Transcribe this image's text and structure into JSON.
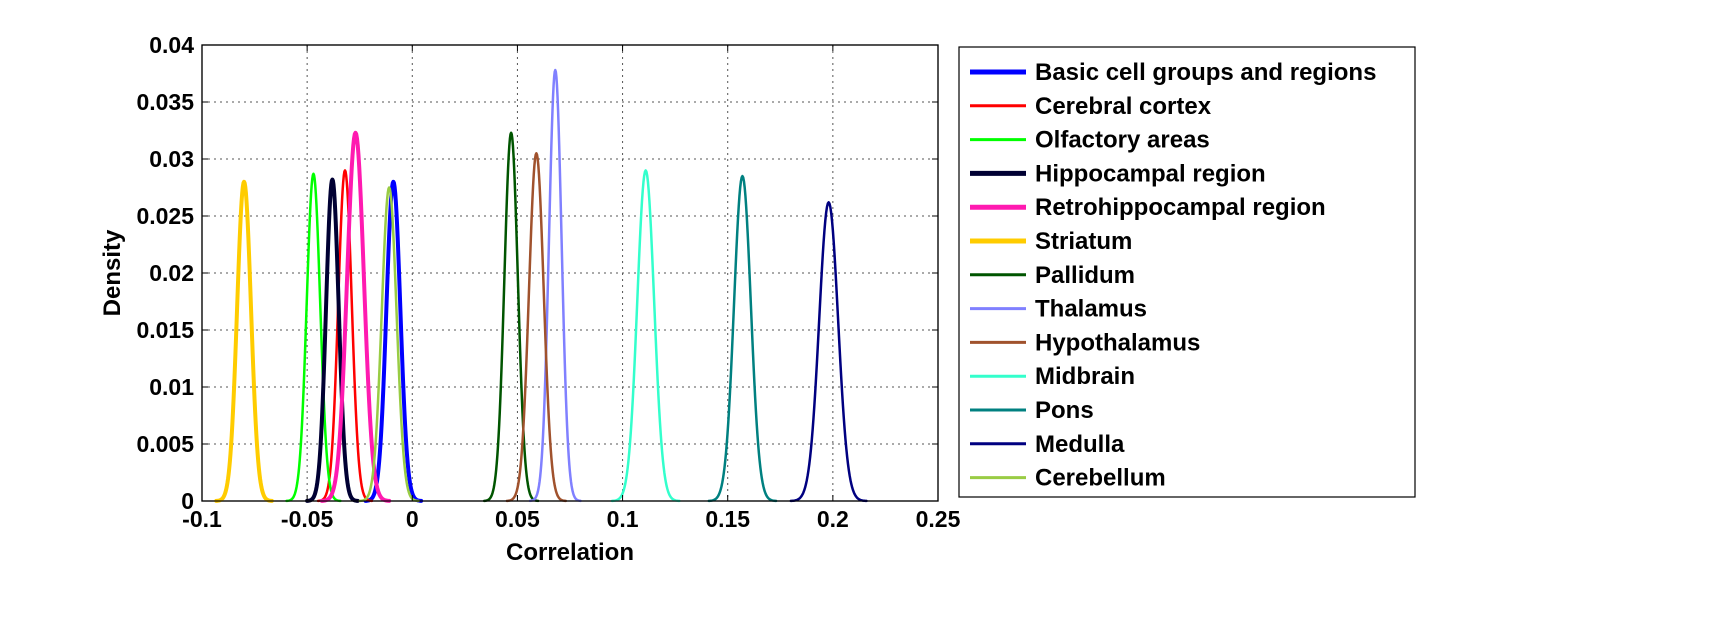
{
  "chart_data": {
    "type": "line",
    "title": "",
    "xlabel": "Correlation",
    "ylabel": "Density",
    "xlim": [
      -0.1,
      0.25
    ],
    "ylim": [
      0,
      0.04
    ],
    "xticks": [
      -0.1,
      -0.05,
      0,
      0.05,
      0.1,
      0.15,
      0.2,
      0.25
    ],
    "xtick_labels": [
      "-0.1",
      "-0.05",
      "0",
      "0.05",
      "0.1",
      "0.15",
      "0.2",
      "0.25"
    ],
    "yticks": [
      0,
      0.005,
      0.01,
      0.015,
      0.02,
      0.025,
      0.03,
      0.035,
      0.04
    ],
    "ytick_labels": [
      "0",
      "0.005",
      "0.01",
      "0.015",
      "0.02",
      "0.025",
      "0.03",
      "0.035",
      "0.04"
    ],
    "grid": true,
    "legend_position": "outside-right",
    "series": [
      {
        "name": "Basic cell groups and regions",
        "color": "#0000ff",
        "thick": true,
        "peak_x": -0.009,
        "peak_y": 0.028,
        "sigma": 0.0033
      },
      {
        "name": "Cerebral cortex",
        "color": "#ff0000",
        "thick": false,
        "peak_x": -0.032,
        "peak_y": 0.029,
        "sigma": 0.0032
      },
      {
        "name": "Olfactory areas",
        "color": "#00ff00",
        "thick": false,
        "peak_x": -0.047,
        "peak_y": 0.0287,
        "sigma": 0.0032
      },
      {
        "name": "Hippocampal region",
        "color": "#000033",
        "thick": true,
        "peak_x": -0.038,
        "peak_y": 0.0282,
        "sigma": 0.003
      },
      {
        "name": "Retrohippocampal region",
        "color": "#ff1ab0",
        "thick": true,
        "peak_x": -0.027,
        "peak_y": 0.0323,
        "sigma": 0.004
      },
      {
        "name": "Striatum",
        "color": "#ffcc00",
        "thick": true,
        "peak_x": -0.08,
        "peak_y": 0.028,
        "sigma": 0.0033
      },
      {
        "name": "Pallidum",
        "color": "#005500",
        "thick": false,
        "peak_x": 0.047,
        "peak_y": 0.0323,
        "sigma": 0.0032
      },
      {
        "name": "Thalamus",
        "color": "#8080ff",
        "thick": false,
        "peak_x": 0.068,
        "peak_y": 0.0378,
        "sigma": 0.003
      },
      {
        "name": "Hypothalamus",
        "color": "#a0522d",
        "thick": false,
        "peak_x": 0.059,
        "peak_y": 0.0305,
        "sigma": 0.0035
      },
      {
        "name": "Midbrain",
        "color": "#33ffcc",
        "thick": false,
        "peak_x": 0.111,
        "peak_y": 0.029,
        "sigma": 0.004
      },
      {
        "name": "Pons",
        "color": "#008080",
        "thick": false,
        "peak_x": 0.157,
        "peak_y": 0.0285,
        "sigma": 0.004
      },
      {
        "name": "Medulla",
        "color": "#000080",
        "thick": false,
        "peak_x": 0.198,
        "peak_y": 0.0262,
        "sigma": 0.0045
      },
      {
        "name": "Cerebellum",
        "color": "#99cc44",
        "thick": false,
        "peak_x": -0.011,
        "peak_y": 0.0275,
        "sigma": 0.0035
      }
    ]
  }
}
